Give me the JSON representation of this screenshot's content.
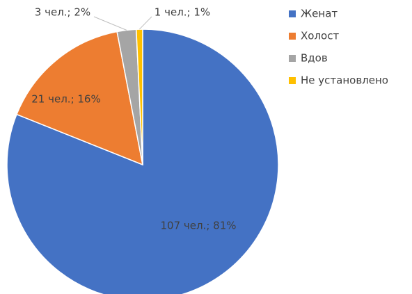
{
  "chart_data": {
    "type": "pie",
    "categories": [
      "Женат",
      "Холост",
      "Вдов",
      "Не установлено"
    ],
    "values": [
      107,
      21,
      3,
      1
    ],
    "value_labels": [
      "107 чел.; 81%",
      "21 чел.; 16%",
      "3 чел.; 2%",
      "1 чел.; 1%"
    ],
    "colors": [
      "#4472c4",
      "#ed7d31",
      "#a5a5a5",
      "#ffc000"
    ],
    "legend": "right"
  }
}
